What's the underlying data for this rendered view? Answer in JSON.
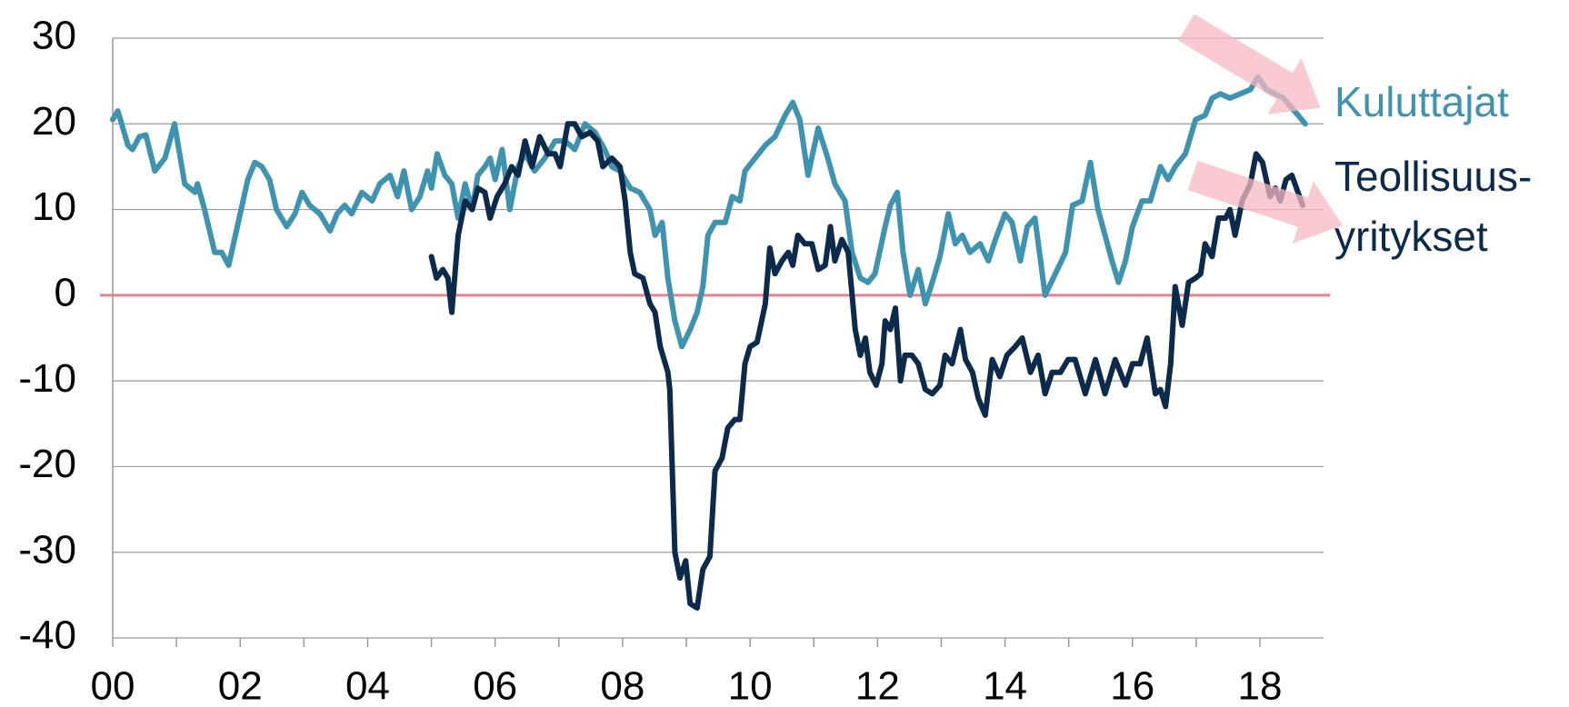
{
  "chart_data": {
    "type": "line",
    "xlim": [
      2000,
      2019
    ],
    "xticks": [
      {
        "value": 2000,
        "label": "00"
      },
      {
        "value": 2002,
        "label": "02"
      },
      {
        "value": 2004,
        "label": "04"
      },
      {
        "value": 2006,
        "label": "06"
      },
      {
        "value": 2008,
        "label": "08"
      },
      {
        "value": 2010,
        "label": "10"
      },
      {
        "value": 2012,
        "label": "12"
      },
      {
        "value": 2014,
        "label": "14"
      },
      {
        "value": 2016,
        "label": "16"
      },
      {
        "value": 2018,
        "label": "18"
      }
    ],
    "xminorticks": [
      2001,
      2003,
      2005,
      2007,
      2009,
      2011,
      2013,
      2015,
      2017
    ],
    "ylim": [
      -40,
      30
    ],
    "yticks": [
      30,
      20,
      10,
      0,
      -10,
      -20,
      -30,
      -40
    ],
    "grid": true,
    "zero_line_color": "#f07f8c",
    "legend": "right",
    "series": [
      {
        "name": "Kuluttajat",
        "color": "#3e93b0",
        "x": [
          2000.0,
          2000.08,
          2000.24,
          2000.31,
          2000.42,
          2000.52,
          2000.66,
          2000.82,
          2000.97,
          2001.13,
          2001.29,
          2001.33,
          2001.44,
          2001.6,
          2001.71,
          2001.82,
          2002.03,
          2002.12,
          2002.23,
          2002.34,
          2002.46,
          2002.57,
          2002.73,
          2002.86,
          2002.97,
          2003.09,
          2003.25,
          2003.41,
          2003.52,
          2003.64,
          2003.75,
          2003.91,
          2004.07,
          2004.19,
          2004.35,
          2004.47,
          2004.57,
          2004.69,
          2004.82,
          2004.94,
          2005.0,
          2005.09,
          2005.21,
          2005.32,
          2005.42,
          2005.53,
          2005.64,
          2005.73,
          2005.84,
          2005.92,
          2006.0,
          2006.11,
          2006.23,
          2006.36,
          2006.47,
          2006.62,
          2006.78,
          2006.94,
          2007.1,
          2007.25,
          2007.41,
          2007.57,
          2007.72,
          2007.83,
          2007.96,
          2008.12,
          2008.27,
          2008.43,
          2008.51,
          2008.62,
          2008.71,
          2008.82,
          2008.93,
          2009.06,
          2009.17,
          2009.26,
          2009.34,
          2009.45,
          2009.61,
          2009.72,
          2009.84,
          2009.92,
          2010.08,
          2010.24,
          2010.39,
          2010.55,
          2010.67,
          2010.78,
          2010.91,
          2011.07,
          2011.22,
          2011.33,
          2011.49,
          2011.6,
          2011.73,
          2011.85,
          2011.96,
          2012.12,
          2012.2,
          2012.31,
          2012.4,
          2012.51,
          2012.64,
          2012.75,
          2012.86,
          2012.98,
          2013.11,
          2013.22,
          2013.33,
          2013.45,
          2013.61,
          2013.74,
          2013.85,
          2014.0,
          2014.11,
          2014.24,
          2014.35,
          2014.47,
          2014.63,
          2014.79,
          2014.95,
          2015.06,
          2015.21,
          2015.34,
          2015.46,
          2015.57,
          2015.68,
          2015.78,
          2015.89,
          2016.0,
          2016.15,
          2016.28,
          2016.44,
          2016.56,
          2016.67,
          2016.83,
          2016.99,
          2017.14,
          2017.25,
          2017.38,
          2017.53,
          2017.69,
          2017.85,
          2017.97,
          2018.1,
          2018.24,
          2018.37,
          2018.48,
          2018.6,
          2018.71
        ],
        "values": [
          20.5,
          21.5,
          17.5,
          17,
          18.5,
          18.7,
          14.5,
          16,
          20,
          13,
          12,
          13,
          10,
          5,
          5,
          3.5,
          10.5,
          13.5,
          15.5,
          15,
          13.5,
          10,
          8,
          9.5,
          12,
          10.5,
          9.5,
          7.5,
          9.5,
          10.5,
          9.5,
          12,
          11,
          13,
          14,
          11.5,
          14.5,
          10,
          11.5,
          14.5,
          12.5,
          16.5,
          14,
          13,
          9,
          13,
          10,
          14,
          15,
          16,
          13.5,
          17,
          10,
          15,
          16.5,
          14.5,
          16,
          18,
          18,
          17,
          20,
          19,
          17,
          15,
          14.5,
          12.5,
          12,
          10,
          7,
          8.5,
          2,
          -3,
          -6,
          -4,
          -2,
          1,
          7,
          8.5,
          8.5,
          11.5,
          11,
          14.5,
          16,
          17.5,
          18.5,
          21,
          22.5,
          20.5,
          14,
          19.5,
          16,
          13,
          11,
          5,
          2,
          1.5,
          2.5,
          8,
          10.5,
          12,
          5,
          0,
          3,
          -1,
          1.5,
          4.5,
          9.5,
          6,
          7,
          5,
          6,
          4,
          6.5,
          9.5,
          8.5,
          4,
          8,
          9,
          0,
          2.5,
          5,
          10.5,
          11,
          15.5,
          10,
          7,
          4,
          1.5,
          4,
          8,
          11,
          11,
          15,
          13.5,
          15,
          16.5,
          20.5,
          21,
          23,
          23.5,
          23,
          23.5,
          24,
          25.5,
          24,
          23.5,
          23,
          22,
          21,
          20
        ]
      },
      {
        "name": "Teollisuus-yritykset",
        "color": "#0c2a4c",
        "x": [
          2005.0,
          2005.08,
          2005.18,
          2005.26,
          2005.32,
          2005.42,
          2005.53,
          2005.64,
          2005.73,
          2005.84,
          2005.92,
          2006.03,
          2006.15,
          2006.26,
          2006.36,
          2006.47,
          2006.58,
          2006.7,
          2006.83,
          2006.94,
          2007.02,
          2007.14,
          2007.25,
          2007.36,
          2007.49,
          2007.61,
          2007.69,
          2007.83,
          2007.96,
          2008.04,
          2008.12,
          2008.19,
          2008.32,
          2008.43,
          2008.51,
          2008.59,
          2008.71,
          2008.74,
          2008.82,
          2008.9,
          2008.99,
          2009.06,
          2009.17,
          2009.26,
          2009.37,
          2009.45,
          2009.56,
          2009.65,
          2009.76,
          2009.84,
          2009.92,
          2010.0,
          2010.11,
          2010.24,
          2010.31,
          2010.39,
          2010.5,
          2010.6,
          2010.67,
          2010.75,
          2010.86,
          2010.97,
          2011.07,
          2011.18,
          2011.26,
          2011.33,
          2011.44,
          2011.54,
          2011.65,
          2011.73,
          2011.81,
          2011.88,
          2011.98,
          2012.07,
          2012.12,
          2012.2,
          2012.28,
          2012.36,
          2012.43,
          2012.54,
          2012.64,
          2012.75,
          2012.86,
          2012.98,
          2013.06,
          2013.17,
          2013.3,
          2013.38,
          2013.49,
          2013.58,
          2013.69,
          2013.8,
          2013.92,
          2014.03,
          2014.16,
          2014.27,
          2014.4,
          2014.52,
          2014.63,
          2014.74,
          2014.87,
          2014.99,
          2015.1,
          2015.26,
          2015.42,
          2015.57,
          2015.73,
          2015.89,
          2016.0,
          2016.12,
          2016.23,
          2016.36,
          2016.44,
          2016.52,
          2016.6,
          2016.67,
          2016.78,
          2016.88,
          2016.99,
          2017.07,
          2017.14,
          2017.25,
          2017.35,
          2017.46,
          2017.53,
          2017.61,
          2017.72,
          2017.85,
          2017.94,
          2018.04,
          2018.16,
          2018.24,
          2018.32,
          2018.41,
          2018.5,
          2018.67
        ],
        "values": [
          4.5,
          2,
          3,
          2,
          -2,
          7,
          11,
          10,
          12.5,
          12,
          9,
          11.5,
          13,
          15,
          14,
          18,
          15,
          18.5,
          16.5,
          16.5,
          15,
          20,
          20,
          18.5,
          19,
          18,
          15,
          16,
          15,
          11,
          5,
          2.5,
          2,
          -1,
          -2,
          -6,
          -9,
          -11,
          -30,
          -33,
          -31,
          -36,
          -36.5,
          -32,
          -30.5,
          -20.5,
          -19,
          -15.5,
          -14.5,
          -14.5,
          -8,
          -6,
          -5.5,
          -1,
          5.5,
          2.5,
          4,
          5,
          3.5,
          7,
          6,
          6,
          3,
          3.5,
          8,
          4,
          6.5,
          5,
          -4,
          -7,
          -5,
          -9,
          -10.5,
          -8,
          -3,
          -4,
          -1.5,
          -10,
          -7,
          -7,
          -8,
          -11,
          -11.5,
          -10.5,
          -7,
          -8,
          -4,
          -7.5,
          -9,
          -12,
          -14,
          -7.5,
          -9.5,
          -7,
          -6,
          -5,
          -9,
          -7,
          -11.5,
          -9,
          -9,
          -7.5,
          -7.5,
          -11.5,
          -7.5,
          -11.5,
          -7.5,
          -10.5,
          -8,
          -8,
          -5,
          -11.5,
          -11,
          -13,
          -8,
          1,
          -3.5,
          1.5,
          2,
          2.5,
          6,
          4.5,
          9,
          9,
          10,
          7,
          11,
          13,
          16.5,
          15.5,
          11.5,
          12.5,
          11,
          13.5,
          14,
          10.5
        ]
      }
    ]
  }
}
